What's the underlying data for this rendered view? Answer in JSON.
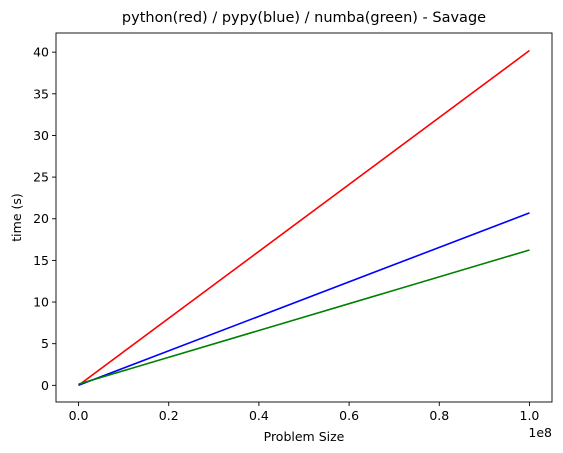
{
  "chart_data": {
    "type": "line",
    "title": "python(red) / pypy(blue) / numba(green) - Savage",
    "xlabel": "Problem Size",
    "ylabel": "time (s)",
    "x_offset_label": "1e8",
    "xlim": [
      -5000000,
      105000000
    ],
    "ylim": [
      -2.0,
      42.3
    ],
    "xticks": [
      0,
      20000000,
      40000000,
      60000000,
      80000000,
      100000000
    ],
    "xtick_labels": [
      "0.0",
      "0.2",
      "0.4",
      "0.6",
      "0.8",
      "1.0"
    ],
    "yticks": [
      0,
      5,
      10,
      15,
      20,
      25,
      30,
      35,
      40
    ],
    "ytick_labels": [
      "0",
      "5",
      "10",
      "15",
      "20",
      "25",
      "30",
      "35",
      "40"
    ],
    "grid": false,
    "legend": "none",
    "series": [
      {
        "color": "#ff0000",
        "x": [
          0,
          100000000
        ],
        "y": [
          0.0,
          40.2
        ]
      },
      {
        "color": "#0000ff",
        "x": [
          0,
          100000000
        ],
        "y": [
          0.0,
          20.7
        ]
      },
      {
        "color": "#008000",
        "x": [
          0,
          100000000
        ],
        "y": [
          0.15,
          16.25
        ]
      }
    ]
  }
}
